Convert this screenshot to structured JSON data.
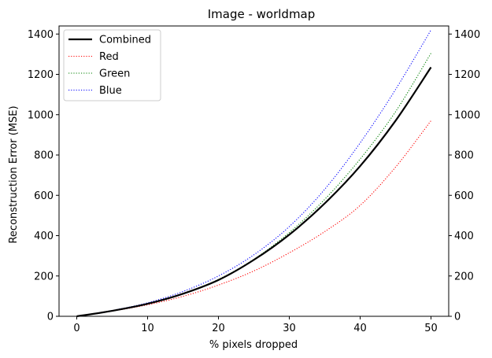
{
  "chart_data": {
    "type": "line",
    "title": "Image - worldmap",
    "xlabel": "% pixels dropped",
    "ylabel": "Reconstruction Error (MSE)",
    "xlim": [
      -2.5,
      52.5
    ],
    "ylim": [
      0,
      1440
    ],
    "xticks": [
      0,
      10,
      20,
      30,
      40,
      50
    ],
    "yticks": [
      0,
      200,
      400,
      600,
      800,
      1000,
      1200,
      1400
    ],
    "right_axis_ticks": [
      0,
      200,
      400,
      600,
      800,
      1000,
      1200,
      1400
    ],
    "grid": false,
    "legend_position": "top-left",
    "x": [
      0,
      5,
      10,
      15,
      20,
      25,
      30,
      35,
      40,
      45,
      50
    ],
    "series": [
      {
        "name": "Combined",
        "color": "#000000",
        "style": "solid",
        "values": [
          0,
          27,
          62,
          112,
          180,
          280,
          405,
          560,
          745,
          970,
          1235
        ]
      },
      {
        "name": "Red",
        "color": "#ff0000",
        "style": "dotted",
        "values": [
          0,
          26,
          57,
          99,
          155,
          225,
          315,
          420,
          550,
          740,
          970
        ]
      },
      {
        "name": "Green",
        "color": "#008000",
        "style": "dotted",
        "values": [
          0,
          27,
          62,
          113,
          183,
          283,
          415,
          580,
          780,
          1015,
          1305
        ]
      },
      {
        "name": "Blue",
        "color": "#0000ff",
        "style": "dotted",
        "values": [
          0,
          29,
          67,
          123,
          200,
          305,
          445,
          630,
          860,
          1125,
          1420
        ]
      }
    ]
  }
}
